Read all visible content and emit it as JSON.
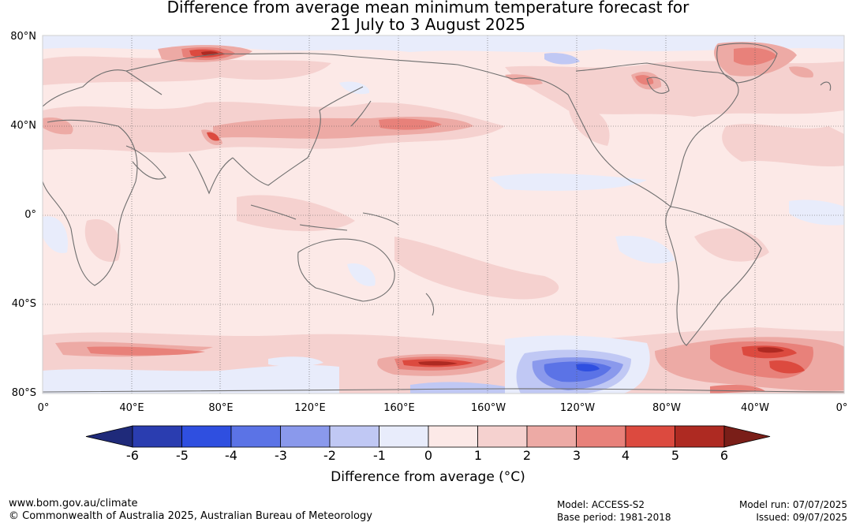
{
  "title_line1": "Difference from average mean minimum temperature forecast for",
  "title_line2": "21 July to 3 August 2025",
  "lat_labels": [
    "80°N",
    "40°N",
    "0°",
    "40°S",
    "80°S"
  ],
  "lon_labels": [
    "0°",
    "40°E",
    "80°E",
    "120°E",
    "160°E",
    "160°W",
    "120°W",
    "80°W",
    "40°W",
    "0°"
  ],
  "colorbar": {
    "ticks": [
      "-6",
      "-5",
      "-4",
      "-3",
      "-2",
      "-1",
      "0",
      "1",
      "2",
      "3",
      "4",
      "5",
      "6"
    ],
    "colors": [
      "#1f2a7a",
      "#2a3db0",
      "#2f4fe0",
      "#5b73e6",
      "#8a99ec",
      "#c0c8f4",
      "#e8ecfb",
      "#fce9e7",
      "#f5d1cf",
      "#edaaa5",
      "#e8817a",
      "#dc4a3f",
      "#ae2a22",
      "#7a1e18"
    ],
    "label": "Difference from average (°C)"
  },
  "legend_ranges": [
    {
      "from": -6,
      "to": -5
    },
    {
      "from": -5,
      "to": -4
    },
    {
      "from": -4,
      "to": -3
    },
    {
      "from": -3,
      "to": -2
    },
    {
      "from": -2,
      "to": -1
    },
    {
      "from": -1,
      "to": 0
    },
    {
      "from": 0,
      "to": 1
    },
    {
      "from": 1,
      "to": 2
    },
    {
      "from": 2,
      "to": 3
    },
    {
      "from": 3,
      "to": 4
    },
    {
      "from": 4,
      "to": 5
    },
    {
      "from": 5,
      "to": 6
    }
  ],
  "footer": {
    "website": "www.bom.gov.au/climate",
    "copyright": "© Commonwealth of Australia 2025, Australian Bureau of Meteorology",
    "model": "Model: ACCESS-S2",
    "base_period": "Base period: 1981-2018",
    "model_run": "Model run: 07/07/2025",
    "issued": "Issued: 09/07/2025"
  }
}
